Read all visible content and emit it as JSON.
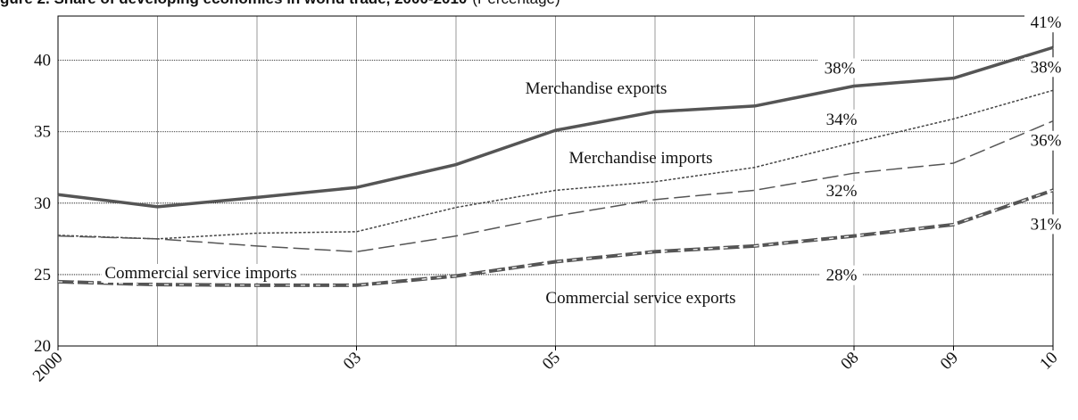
{
  "chart_data": {
    "type": "line",
    "title": "gure 2. Share of developing economies in world trade, 2000-2010",
    "subtitle": "(Percentage)",
    "categories": [
      "2000",
      null,
      null,
      "03",
      null,
      "05",
      null,
      null,
      "08",
      "09",
      "10"
    ],
    "ylim": [
      20,
      43.1
    ],
    "yticks": [
      20,
      25,
      30,
      35,
      40
    ],
    "grid": true,
    "series": [
      {
        "name": "Merchandise exports",
        "color": "#555555",
        "style": "solid",
        "values": [
          30.6,
          29.75,
          30.4,
          31.1,
          32.7,
          35.1,
          36.4,
          36.8,
          38.2,
          38.75,
          40.9
        ],
        "value_labels": [
          null,
          null,
          null,
          null,
          null,
          null,
          null,
          null,
          "38%",
          null,
          "41%"
        ]
      },
      {
        "name": "Merchandise imports",
        "color": "#444444",
        "style": "dotted",
        "values": [
          27.75,
          27.5,
          27.9,
          28.0,
          29.7,
          30.9,
          31.5,
          32.5,
          34.25,
          35.9,
          37.9
        ],
        "value_labels": [
          null,
          null,
          null,
          null,
          null,
          null,
          null,
          null,
          "34%",
          null,
          "38%"
        ]
      },
      {
        "color": "#555555",
        "style": "longdash",
        "values": [
          27.7,
          27.5,
          27.0,
          26.6,
          27.7,
          29.1,
          30.25,
          30.9,
          32.1,
          32.8,
          35.75
        ],
        "value_labels": [
          null,
          null,
          null,
          null,
          null,
          null,
          null,
          null,
          "32%",
          null,
          "36%"
        ]
      },
      {
        "name": "Commercial service imports",
        "color": "#555555",
        "style": "thickdash",
        "values": [
          24.5,
          24.3,
          24.25,
          24.25,
          24.9,
          25.9,
          26.6,
          27.0,
          27.7,
          28.5,
          30.9
        ],
        "value_labels": [
          null,
          null,
          null,
          null,
          null,
          null,
          null,
          null,
          "28%",
          null,
          "31%"
        ]
      },
      {
        "name": "Commercial service exports",
        "color": "#ffffff",
        "style": "whitedash",
        "values": [
          24.5,
          24.3,
          24.25,
          24.25,
          24.9,
          25.9,
          26.6,
          27.0,
          27.7,
          28.5,
          30.9
        ]
      }
    ]
  }
}
